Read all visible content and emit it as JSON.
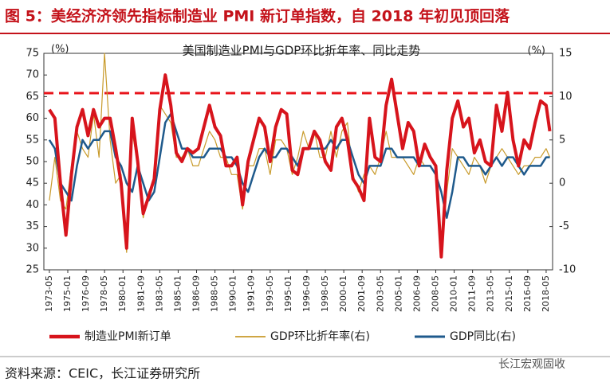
{
  "header": {
    "title": "图 5：美经济济领先指标制造业 PMI 新订单指数，自 2018 年初见顶回落"
  },
  "source": "资料来源：CEIC，长江证券研究所",
  "watermark": "长江宏观固收",
  "chart_data": {
    "type": "line",
    "title": "美国制造业PMI与GDP环比折年率、同比走势",
    "y_unit": "(%)",
    "y2_unit": "(%)",
    "x": [
      "1973-05",
      "1973-11",
      "1974-05",
      "1974-11",
      "1975-05",
      "1975-11",
      "1976-05",
      "1976-11",
      "1977-05",
      "1977-11",
      "1978-05",
      "1978-11",
      "1979-05",
      "1979-11",
      "1980-05",
      "1980-11",
      "1981-05",
      "1981-11",
      "1982-05",
      "1982-11",
      "1983-05",
      "1983-11",
      "1984-05",
      "1984-11",
      "1985-05",
      "1985-11",
      "1986-05",
      "1986-11",
      "1987-05",
      "1987-11",
      "1988-05",
      "1988-11",
      "1989-05",
      "1989-11",
      "1990-05",
      "1990-11",
      "1991-05",
      "1991-11",
      "1992-05",
      "1992-11",
      "1993-05",
      "1993-11",
      "1994-05",
      "1994-11",
      "1995-05",
      "1995-11",
      "1996-05",
      "1996-11",
      "1997-05",
      "1997-11",
      "1998-05",
      "1998-11",
      "1999-05",
      "1999-11",
      "2000-05",
      "2000-11",
      "2001-05",
      "2001-11",
      "2002-05",
      "2002-11",
      "2003-05",
      "2003-11",
      "2004-05",
      "2004-11",
      "2005-05",
      "2005-11",
      "2006-05",
      "2006-11",
      "2007-05",
      "2007-11",
      "2008-05",
      "2008-11",
      "2009-05",
      "2009-11",
      "2010-05",
      "2010-11",
      "2011-05",
      "2011-11",
      "2012-05",
      "2012-11",
      "2013-05",
      "2013-11",
      "2014-05",
      "2014-11",
      "2015-05",
      "2015-11",
      "2016-05",
      "2016-11",
      "2017-05",
      "2017-11",
      "2018-05",
      "2018-09"
    ],
    "xlim": [
      "1972-11",
      "2018-12"
    ],
    "xticks": [
      "1973-05",
      "1975-01",
      "1976-09",
      "1978-05",
      "1980-01",
      "1981-09",
      "1983-05",
      "1985-01",
      "1986-09",
      "1988-05",
      "1990-01",
      "1991-09",
      "1993-05",
      "1995-01",
      "1996-09",
      "1998-05",
      "2000-01",
      "2001-09",
      "2003-05",
      "2005-01",
      "2006-09",
      "2008-05",
      "2010-01",
      "2011-09",
      "2013-05",
      "2015-01",
      "2016-09",
      "2018-05"
    ],
    "ylim": [
      25,
      75
    ],
    "yticks": [
      25,
      30,
      35,
      40,
      45,
      50,
      55,
      60,
      65,
      70,
      75
    ],
    "y2lim": [
      -10,
      15
    ],
    "y2ticks": [
      -10,
      -5,
      0,
      5,
      10,
      15
    ],
    "hline": 65.8,
    "hline_color": "#e8141b",
    "series": [
      {
        "name": "制造业PMI新订单",
        "color": "#d7141c",
        "width": 4,
        "values": [
          62,
          60,
          45,
          33,
          47,
          58,
          62,
          56,
          62,
          58,
          60,
          60,
          53,
          45,
          30,
          60,
          50,
          38,
          42,
          46,
          62,
          70,
          63,
          52,
          50,
          53,
          52,
          53,
          58,
          63,
          58,
          56,
          49,
          49,
          51,
          40,
          50,
          55,
          60,
          58,
          50,
          58,
          62,
          61,
          48,
          47,
          53,
          53,
          57,
          55,
          50,
          48,
          58,
          60,
          55,
          46,
          44,
          41,
          60,
          51,
          50,
          63,
          69,
          61,
          53,
          59,
          57,
          49,
          54,
          51,
          49,
          28,
          48,
          60,
          64,
          58,
          60,
          52,
          55,
          50,
          49,
          63,
          57,
          66,
          55,
          49,
          55,
          53,
          59,
          64,
          63,
          57
        ]
      },
      {
        "name": "GDP环比折年率(右)",
        "color": "#c89a2a",
        "width": 1.2,
        "axis": "y2",
        "values": [
          -2,
          3,
          -2,
          -3,
          2,
          6,
          4,
          3,
          8,
          3,
          15,
          5,
          0,
          1,
          -8,
          6,
          2,
          -4,
          -1,
          0,
          9,
          8,
          7,
          3,
          3,
          4,
          2,
          2,
          4,
          6,
          5,
          3,
          3,
          1,
          1,
          -3,
          2,
          2,
          4,
          4,
          1,
          5,
          5,
          4,
          1,
          3,
          6,
          4,
          6,
          3,
          3,
          6,
          3,
          6,
          7,
          1,
          -1,
          1,
          2,
          1,
          3,
          6,
          3,
          3,
          3,
          2,
          1,
          3,
          2,
          2,
          1,
          -8,
          -1,
          4,
          3,
          2,
          1,
          3,
          2,
          0,
          2,
          3,
          4,
          3,
          2,
          1,
          2,
          2,
          3,
          3,
          4,
          3
        ]
      },
      {
        "name": "GDP同比(右)",
        "color": "#1f5a8c",
        "width": 2.5,
        "axis": "y2",
        "values": [
          5,
          4,
          0,
          -1,
          -2,
          2,
          5,
          4,
          5,
          5,
          6,
          6,
          3,
          2,
          0,
          -1,
          2,
          0,
          -2,
          -1,
          3,
          7,
          8,
          6,
          4,
          4,
          3,
          3,
          3,
          4,
          4,
          4,
          3,
          3,
          2,
          0,
          -1,
          1,
          3,
          4,
          3,
          3,
          4,
          4,
          3,
          2,
          4,
          4,
          4,
          4,
          4,
          5,
          4,
          5,
          5,
          3,
          1,
          0,
          2,
          2,
          2,
          4,
          4,
          3,
          3,
          3,
          3,
          2,
          2,
          2,
          1,
          -1,
          -4,
          -1,
          3,
          3,
          2,
          2,
          2,
          1,
          2,
          3,
          2,
          3,
          3,
          2,
          1,
          2,
          2,
          2,
          3,
          3
        ]
      }
    ]
  }
}
